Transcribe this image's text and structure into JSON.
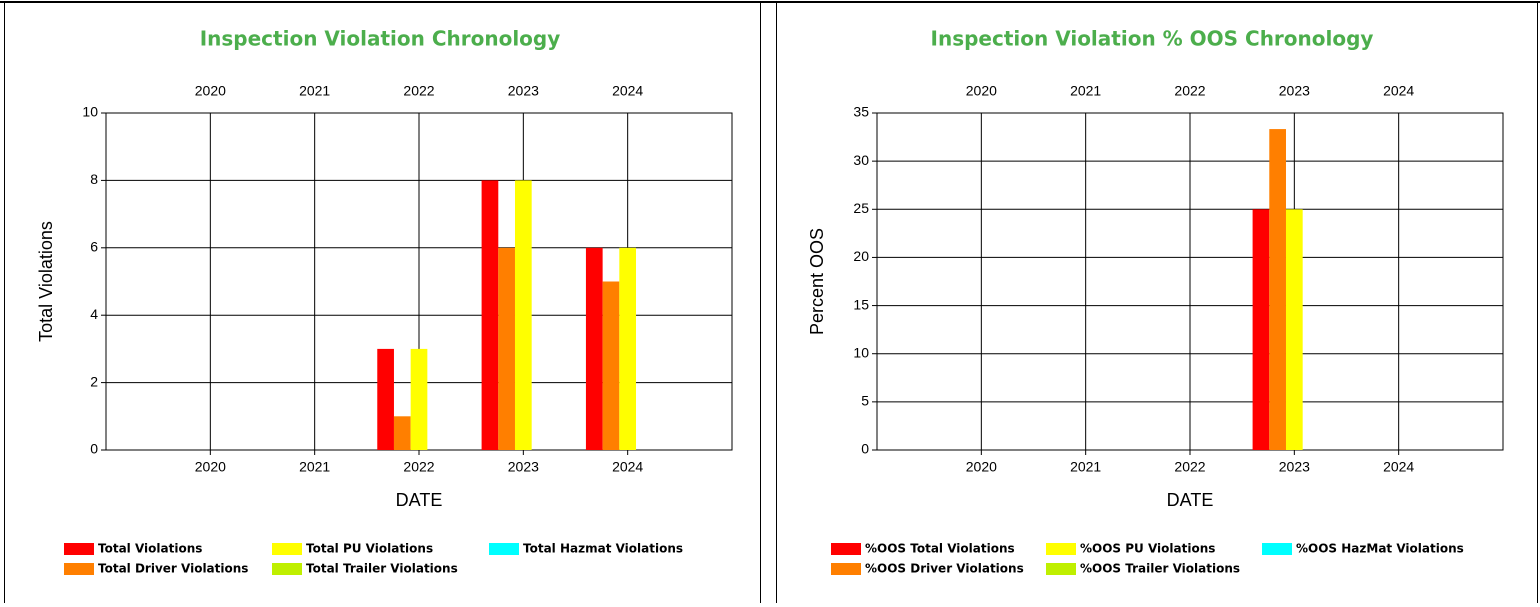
{
  "chart_data": [
    {
      "type": "bar",
      "title": "Inspection Violation Chronology",
      "x_label": "DATE",
      "y_label": "Total Violations",
      "x": [
        2020,
        2021,
        2022,
        2023,
        2024
      ],
      "xlim": [
        2019,
        2025
      ],
      "xticks": [
        2020,
        2021,
        2022,
        2023,
        2024
      ],
      "ylim": [
        0,
        10
      ],
      "yticks": [
        0,
        2,
        4,
        6,
        8,
        10
      ],
      "grid": true,
      "series": [
        {
          "name": "Total Violations",
          "color": "#ff0000",
          "values": [
            0,
            0,
            3,
            8,
            6
          ]
        },
        {
          "name": "Total Driver Violations",
          "color": "#ff7f00",
          "values": [
            0,
            0,
            1,
            6,
            5
          ]
        },
        {
          "name": "Total PU Violations",
          "color": "#ffff00",
          "values": [
            0,
            0,
            3,
            8,
            6
          ]
        },
        {
          "name": "Total Trailer Violations",
          "color": "#bfef00",
          "values": [
            0,
            0,
            0,
            0,
            0
          ]
        },
        {
          "name": "Total Hazmat Violations",
          "color": "#00ffff",
          "values": [
            0,
            0,
            0,
            0,
            0
          ]
        }
      ]
    },
    {
      "type": "bar",
      "title": "Inspection Violation % OOS Chronology",
      "x_label": "DATE",
      "y_label": "Percent OOS",
      "x": [
        2020,
        2021,
        2022,
        2023,
        2024
      ],
      "xlim": [
        2019,
        2025
      ],
      "xticks": [
        2020,
        2021,
        2022,
        2023,
        2024
      ],
      "ylim": [
        0,
        35
      ],
      "yticks": [
        0,
        5,
        10,
        15,
        20,
        25,
        30,
        35
      ],
      "grid": true,
      "series": [
        {
          "name": "%OOS Total Violations",
          "color": "#ff0000",
          "values": [
            0,
            0,
            0,
            25,
            0
          ]
        },
        {
          "name": "%OOS Driver Violations",
          "color": "#ff7f00",
          "values": [
            0,
            0,
            0,
            33.33,
            0
          ]
        },
        {
          "name": "%OOS PU Violations",
          "color": "#ffff00",
          "values": [
            0,
            0,
            0,
            25,
            0
          ]
        },
        {
          "name": "%OOS Trailer Violations",
          "color": "#bfef00",
          "values": [
            0,
            0,
            0,
            0,
            0
          ]
        },
        {
          "name": "%OOS HazMat Violations",
          "color": "#00ffff",
          "values": [
            0,
            0,
            0,
            0,
            0
          ]
        }
      ]
    }
  ]
}
